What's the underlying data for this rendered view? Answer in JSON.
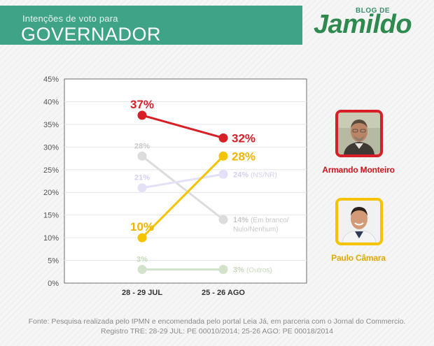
{
  "header": {
    "subtitle": "Intenções de voto para",
    "title": "GOVERNADOR"
  },
  "logo": {
    "top_text": "BLOG DE",
    "main_text": "Jamildo"
  },
  "colors": {
    "header_green": "#3fa388",
    "armando_red": "#d61f26",
    "paulo_yellow": "#f5c400",
    "faded_gray": "#dcdcdc",
    "faded_lavender": "#e3e1f7",
    "faded_green": "#d3e3c9"
  },
  "candidates": [
    {
      "name": "Armando Monteiro",
      "color": "#d61f26",
      "photo_icon": "armando-monteiro-photo"
    },
    {
      "name": "Paulo Câmara",
      "color": "#f5c400",
      "photo_icon": "paulo-camara-photo"
    }
  ],
  "chart_data": {
    "type": "line",
    "categories": [
      "28 - 29 JUL",
      "25 - 26 AGO"
    ],
    "yticks": [
      "45%",
      "40%",
      "35%",
      "30%",
      "25%",
      "20%",
      "15%",
      "10%",
      "5%",
      "0%"
    ],
    "ylim": [
      0,
      45
    ],
    "grid": "horizontal",
    "series": [
      {
        "name": "Em branco/Nulo/Nenhum",
        "values": [
          28,
          14
        ],
        "labels": [
          "28%",
          "14%"
        ],
        "end_note": [
          "(Em branco/",
          "Nulo/Nenhum)"
        ],
        "color": "#dcdcdc",
        "label_color": "#c9c9c9",
        "highlight": false
      },
      {
        "name": "NS/NR",
        "values": [
          21,
          24
        ],
        "labels": [
          "21%",
          "24%"
        ],
        "end_note": [
          "(NS/NR)"
        ],
        "color": "#e3e1f7",
        "label_color": "#d2cff2",
        "highlight": false
      },
      {
        "name": "Outros",
        "values": [
          3,
          3
        ],
        "labels": [
          "3%",
          "3%"
        ],
        "end_note": [
          "(Outros)"
        ],
        "color": "#d3e3c9",
        "label_color": "#c6d8ba",
        "highlight": false
      },
      {
        "name": "Armando Monteiro",
        "values": [
          37,
          32
        ],
        "labels": [
          "37%",
          "32%"
        ],
        "end_note": [],
        "color": "#d61f26",
        "label_color": "#d61f26",
        "highlight": true
      },
      {
        "name": "Paulo Câmara",
        "values": [
          10,
          28
        ],
        "labels": [
          "10%",
          "28%"
        ],
        "end_note": [],
        "color": "#f5c400",
        "label_color": "#f0b400",
        "highlight": true
      }
    ]
  },
  "footer": {
    "line1": "Fonte: Pesquisa realizada pelo IPMN e encomendada pelo portal Leia Já, em parceria com o Jornal do Commercio.",
    "line2": "Registro TRE: 28-29 JUL: PE 00010/2014; 25-26 AGO: PE 00018/2014"
  }
}
